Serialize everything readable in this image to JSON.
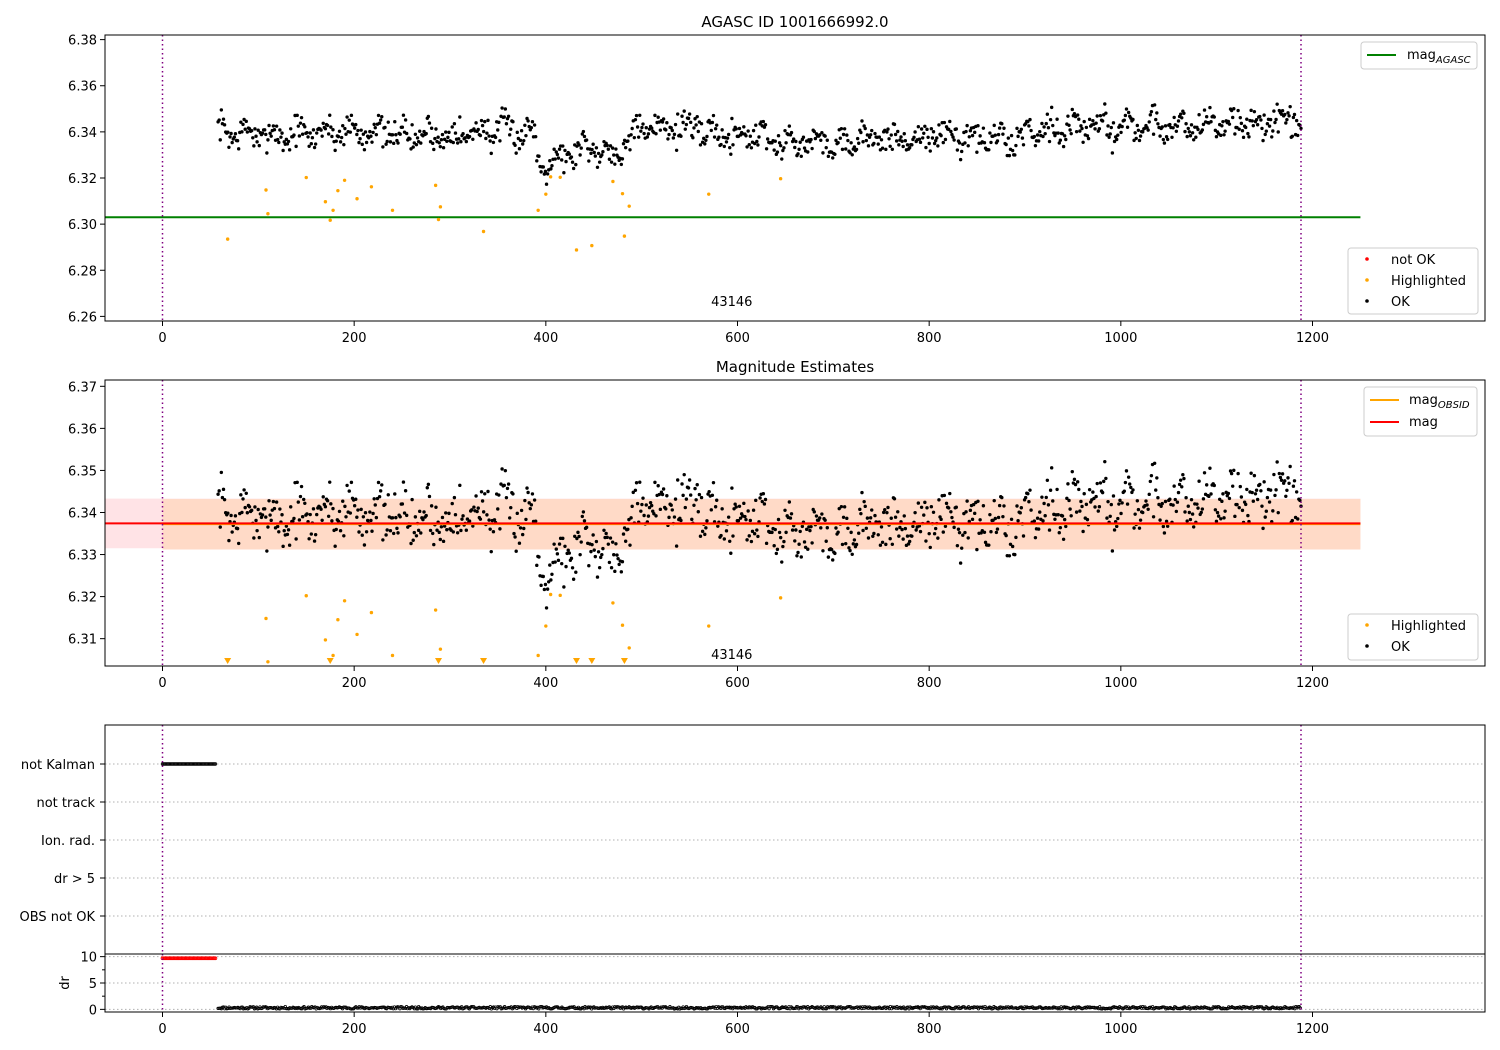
{
  "colors": {
    "ok": "#000000",
    "highlighted": "#ffa500",
    "not_ok": "#ff0000",
    "mag_agasc": "#008000",
    "mag_obsid": "#ffa500",
    "mag": "#ff0000",
    "band_obsid": "#ffdac7",
    "band_mag": "#ffe3e6",
    "obs_boundary": "#800080",
    "grid": "#b0b0b0"
  },
  "chart_data": [
    {
      "type": "scatter",
      "title": "AGASC ID 1001666992.0",
      "xlabel": "",
      "ylabel": "",
      "xlim": [
        -60,
        1380
      ],
      "ylim": [
        6.258,
        6.382
      ],
      "xticks": [
        0,
        200,
        400,
        600,
        800,
        1000,
        1200
      ],
      "xtick_labels": [
        "0",
        "200",
        "400",
        "600",
        "800",
        "1000",
        "1200"
      ],
      "yticks": [
        6.26,
        6.28,
        6.3,
        6.32,
        6.34,
        6.36,
        6.38
      ],
      "ytick_labels": [
        "6.26",
        "6.28",
        "6.30",
        "6.32",
        "6.34",
        "6.36",
        "6.38"
      ],
      "obs_boundaries": [
        0,
        1188
      ],
      "obsid_label": {
        "text": "43146",
        "x": 594,
        "y": 6.2645
      },
      "mag_agasc": 6.303,
      "legend_lines": [
        {
          "name": "mag",
          "sub": "AGASC",
          "color_key": "mag_agasc"
        }
      ],
      "legend_lines_placement": "upper right",
      "legend_points": [
        {
          "name": "not OK"
        },
        {
          "name": "Highlighted"
        },
        {
          "name": "OK"
        }
      ],
      "legend_points_placement": "lower right",
      "series": [
        {
          "name": "OK",
          "t_start": 58,
          "t_end": 1188,
          "n": 1000,
          "seed": 7,
          "baseline": 6.3395
        },
        {
          "name": "Highlighted",
          "points": [
            [
              68,
              6.2935
            ],
            [
              108,
              6.3148
            ],
            [
              110,
              6.3045
            ],
            [
              150,
              6.3202
            ],
            [
              170,
              6.3097
            ],
            [
              175,
              6.3017
            ],
            [
              178,
              6.306
            ],
            [
              183,
              6.3145
            ],
            [
              190,
              6.319
            ],
            [
              203,
              6.311
            ],
            [
              218,
              6.3162
            ],
            [
              240,
              6.306
            ],
            [
              285,
              6.3168
            ],
            [
              288,
              6.302
            ],
            [
              290,
              6.3075
            ],
            [
              335,
              6.2968
            ],
            [
              392,
              6.306
            ],
            [
              400,
              6.313
            ],
            [
              405,
              6.3205
            ],
            [
              415,
              6.3203
            ],
            [
              432,
              6.2888
            ],
            [
              448,
              6.2907
            ],
            [
              470,
              6.3185
            ],
            [
              480,
              6.3132
            ],
            [
              482,
              6.2948
            ],
            [
              487,
              6.3078
            ],
            [
              570,
              6.313
            ],
            [
              645,
              6.3197
            ]
          ]
        },
        {
          "name": "not OK",
          "points": []
        }
      ]
    },
    {
      "type": "scatter",
      "title": "Magnitude Estimates",
      "xlabel": "",
      "ylabel": "",
      "xlim": [
        -60,
        1380
      ],
      "ylim": [
        6.3035,
        6.3715
      ],
      "xticks": [
        0,
        200,
        400,
        600,
        800,
        1000,
        1200
      ],
      "xtick_labels": [
        "0",
        "200",
        "400",
        "600",
        "800",
        "1000",
        "1200"
      ],
      "yticks": [
        6.31,
        6.32,
        6.33,
        6.34,
        6.35,
        6.36,
        6.37
      ],
      "ytick_labels": [
        "6.31",
        "6.32",
        "6.33",
        "6.34",
        "6.35",
        "6.36",
        "6.37"
      ],
      "obs_boundaries": [
        0,
        1188
      ],
      "obsid_label": {
        "text": "43146",
        "x": 594,
        "y": 6.3052
      },
      "mag_obsid": {
        "value": 6.3373,
        "low": 6.3312,
        "high": 6.3432,
        "x_range": [
          0,
          1250
        ]
      },
      "mag": {
        "value": 6.3374,
        "low": 6.3315,
        "high": 6.3433,
        "x_range": [
          -60,
          1250
        ]
      },
      "legend_lines": [
        {
          "name": "mag",
          "sub": "OBSID",
          "color_key": "mag_obsid"
        },
        {
          "name": "mag",
          "sub": "",
          "color_key": "mag"
        }
      ],
      "legend_lines_placement": "upper right",
      "legend_points": [
        {
          "name": "Highlighted"
        },
        {
          "name": "OK"
        }
      ],
      "legend_points_placement": "lower right",
      "clipped_markers_x": [
        68,
        175,
        288,
        335,
        432,
        448,
        482
      ]
    },
    {
      "type": "scatter",
      "title": "",
      "xlabel": "",
      "ylabel": "",
      "xlim": [
        -60,
        1380
      ],
      "categories": [
        "not Kalman",
        "not track",
        "Ion. rad.",
        "dr > 5",
        "OBS not OK"
      ],
      "obs_boundaries": [
        0,
        1188
      ],
      "flag_segments": [
        {
          "category": "not Kalman",
          "x_range": [
            0,
            56
          ]
        }
      ]
    },
    {
      "type": "scatter",
      "title": "",
      "xlabel": "",
      "ylabel": "dr",
      "xlim": [
        -60,
        1380
      ],
      "ylim": [
        -0.5,
        10.5
      ],
      "xticks": [
        0,
        200,
        400,
        600,
        800,
        1000,
        1200
      ],
      "xtick_labels": [
        "0",
        "200",
        "400",
        "600",
        "800",
        "1000",
        "1200"
      ],
      "yticks": [
        0,
        5,
        10
      ],
      "ytick_labels": [
        "0",
        "5",
        "10"
      ],
      "obs_boundaries": [
        0,
        1188
      ],
      "dr_capped": {
        "value": 9.7,
        "x_range": [
          0,
          56
        ]
      },
      "dr_ok": {
        "x_range": [
          58,
          1188
        ],
        "typical": 0.3
      }
    }
  ]
}
